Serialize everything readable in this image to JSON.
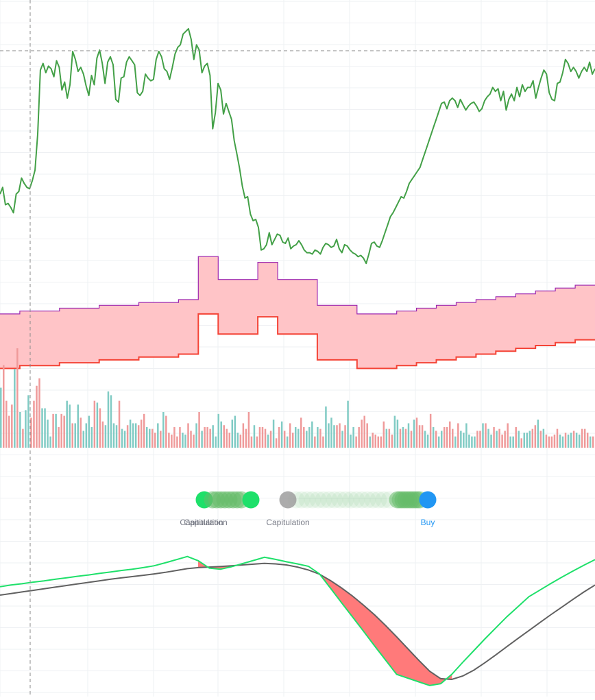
{
  "colors": {
    "price": "#43a047",
    "channel_fill": "#ffc4c7",
    "channel_top": "#9c27b0",
    "channel_bottom": "#f44336",
    "vol_up": "#80cbc4",
    "vol_down": "#ef9a9a",
    "osc_fast": "#1ee06a",
    "osc_slow": "#616161",
    "osc_fill": "#ff7a7a",
    "dot_green": "#1ee06a",
    "dot_mid_green": "#66bb6a",
    "dot_gray": "#9e9e9e",
    "dot_buy": "#2196f3",
    "label_gray": "#787b86",
    "label_buy": "#2196f3",
    "grid": "#eef0f3",
    "crosshair": "#8a8a8a"
  },
  "signals": {
    "labels": [
      {
        "text": "Capitulation",
        "color_key": "label_gray"
      },
      {
        "text": "Capitulation",
        "color_key": "label_gray"
      },
      {
        "text": "Capitulation",
        "color_key": "label_gray"
      },
      {
        "text": "Buy",
        "color_key": "label_buy"
      }
    ]
  },
  "chart_data": [
    {
      "type": "line",
      "panel": "price",
      "series": [
        {
          "values": [
            300,
            305,
            292,
            293,
            290,
            286,
            300,
            302,
            312,
            308,
            305,
            304,
            310,
            318,
            345,
            393,
            398,
            391,
            396,
            394,
            388,
            400,
            395,
            378,
            384,
            372,
            382,
            407,
            401,
            392,
            395,
            390,
            381,
            374,
            389,
            382,
            402,
            408,
            398,
            383,
            399,
            403,
            397,
            371,
            369,
            387,
            388,
            399,
            403,
            400,
            397,
            376,
            374,
            377,
            390,
            387,
            385,
            386,
            401,
            407,
            403,
            394,
            392,
            386,
            395,
            405,
            410,
            412,
            420,
            422,
            424,
            416,
            401,
            412,
            408,
            391,
            396,
            398,
            389,
            349,
            361,
            383,
            378,
            360,
            368,
            362,
            356,
            340,
            330,
            319,
            306,
            297,
            298,
            285,
            280,
            281,
            275,
            258,
            259,
            262,
            271,
            262,
            266,
            270,
            269,
            264,
            263,
            267,
            259,
            261,
            262,
            265,
            262,
            258,
            256,
            256,
            255,
            258,
            257,
            255,
            260,
            263,
            262,
            260,
            261,
            266,
            259,
            256,
            262,
            261,
            258,
            256,
            255,
            253,
            254,
            252,
            248,
            255,
            263,
            264,
            261,
            260,
            265,
            271,
            277,
            283,
            286,
            290,
            294,
            298,
            297,
            302,
            308,
            311,
            314,
            317,
            320,
            326,
            332,
            338,
            344,
            350,
            356,
            362,
            368,
            369,
            364,
            370,
            372,
            370,
            365,
            371,
            367,
            363,
            366,
            368,
            369,
            366,
            362,
            364,
            370,
            373,
            375,
            380,
            377,
            379,
            370,
            377,
            363,
            371,
            375,
            370,
            380,
            373,
            382,
            377,
            380,
            380,
            385,
            372,
            380,
            387,
            393,
            390,
            376,
            371,
            370,
            383,
            384,
            391,
            401,
            398,
            392,
            395,
            392,
            387,
            392,
            395,
            392,
            399,
            390,
            394
          ]
        }
      ]
    },
    {
      "type": "area",
      "panel": "channel",
      "series": [
        {
          "values": [
            300,
            301,
            301,
            302,
            302,
            303,
            303,
            304,
            304,
            305,
            320,
            312,
            312,
            318,
            312,
            312,
            303,
            303,
            300,
            300,
            301,
            302,
            303,
            304,
            305,
            306,
            307,
            308,
            309,
            310
          ]
        },
        {
          "values": [
            281,
            282,
            282,
            283,
            283,
            284,
            284,
            285,
            285,
            286,
            300,
            293,
            293,
            299,
            293,
            293,
            284,
            284,
            281,
            281,
            282,
            283,
            284,
            285,
            286,
            287,
            288,
            289,
            290,
            291
          ]
        }
      ]
    },
    {
      "type": "bar",
      "panel": "volume",
      "values": [
        3.2,
        4.4,
        2.5,
        1.7,
        2.3,
        4.2,
        5.3,
        1.9,
        1.0,
        2.0,
        2.8,
        1.6,
        2.5,
        3.3,
        3.7,
        2.1,
        2.1,
        1.5,
        0.6,
        1.8,
        1.8,
        1.1,
        1.8,
        1.7,
        2.5,
        2.3,
        1.3,
        1.3,
        2.3,
        1.6,
        0.9,
        1.3,
        1.7,
        1.1,
        2.5,
        2.4,
        2.1,
        1.4,
        1.2,
        3.0,
        2.8,
        1.3,
        1.2,
        2.5,
        1.0,
        0.9,
        1.2,
        1.5,
        1.3,
        1.3,
        1.2,
        1.5,
        1.8,
        1.1,
        1.0,
        1.0,
        0.8,
        1.3,
        0.9,
        1.9,
        1.7,
        0.8,
        0.7,
        1.1,
        0.6,
        1.1,
        0.8,
        0.7,
        1.3,
        0.9,
        0.7,
        1.3,
        1.9,
        0.9,
        1.1,
        1.1,
        1.0,
        1.2,
        0.6,
        1.8,
        1.4,
        1.2,
        1.0,
        0.8,
        1.5,
        1.7,
        0.8,
        0.7,
        1.3,
        1.0,
        1.9,
        0.6,
        1.2,
        0.6,
        1.1,
        1.1,
        1.0,
        0.7,
        0.9,
        1.5,
        0.5,
        1.1,
        1.4,
        0.9,
        0.6,
        1.3,
        0.8,
        1.1,
        1.0,
        1.6,
        1.1,
        0.9,
        1.1,
        1.4,
        0.6,
        1.1,
        1.0,
        0.6,
        2.2,
        1.3,
        1.6,
        1.2,
        1.2,
        1.3,
        0.9,
        1.2,
        2.5,
        0.7,
        1.1,
        0.6,
        1.1,
        1.5,
        1.7,
        1.3,
        0.6,
        0.8,
        0.7,
        0.6,
        0.6,
        1.4,
        1.0,
        1.0,
        0.7,
        1.7,
        1.5,
        1.0,
        1.1,
        1.0,
        1.3,
        0.9,
        1.5,
        1.6,
        1.2,
        1.2,
        0.9,
        0.7,
        1.8,
        1.1,
        0.9,
        0.6,
        0.9,
        1.1,
        1.1,
        1.4,
        1.0,
        0.6,
        1.3,
        0.9,
        0.8,
        1.3,
        0.7,
        0.6,
        0.6,
        0.9,
        0.9,
        1.3,
        1.3,
        1.0,
        0.7,
        1.1,
        0.9,
        1.0,
        0.7,
        0.9,
        1.3,
        0.6,
        0.6,
        1.1,
        0.9,
        0.5,
        0.8,
        0.8,
        0.9,
        1.0,
        1.2,
        1.5,
        0.9,
        1.0,
        0.7,
        0.6,
        0.6,
        0.7,
        1.0,
        0.7,
        0.6,
        0.8,
        0.7,
        0.8,
        0.9,
        0.8,
        0.7,
        1.0,
        1.0,
        0.8,
        0.6,
        0.6
      ],
      "direction": [
        1,
        0,
        0,
        0,
        0,
        1,
        0,
        1,
        0,
        1,
        1,
        0,
        0,
        0,
        0,
        1,
        1,
        1,
        1,
        0,
        1,
        0,
        0,
        0,
        1,
        1,
        0,
        1,
        1,
        0,
        1,
        1,
        1,
        1,
        0,
        1,
        0,
        0,
        1,
        1,
        1,
        1,
        1,
        0,
        1,
        1,
        0,
        1,
        1,
        1,
        0,
        0,
        0,
        1,
        1,
        0,
        0,
        1,
        0,
        1,
        0,
        0,
        0,
        0,
        0,
        0,
        1,
        1,
        0,
        0,
        0,
        1,
        0,
        1,
        0,
        0,
        0,
        1,
        1,
        1,
        1,
        0,
        0,
        0,
        1,
        1,
        1,
        0,
        0,
        0,
        0,
        0,
        1,
        0,
        0,
        0,
        0,
        1,
        0,
        1,
        0,
        0,
        1,
        0,
        1,
        0,
        0,
        1,
        1,
        0,
        0,
        1,
        1,
        1,
        0,
        1,
        0,
        0,
        1,
        1,
        1,
        1,
        0,
        0,
        1,
        0,
        1,
        1,
        1,
        0,
        0,
        0,
        0,
        0,
        1,
        0,
        0,
        0,
        0,
        0,
        1,
        0,
        0,
        1,
        1,
        0,
        1,
        0,
        1,
        0,
        1,
        0,
        0,
        0,
        1,
        1,
        0,
        1,
        0,
        1,
        1,
        0,
        0,
        0,
        0,
        1,
        0,
        1,
        1,
        1,
        1,
        1,
        1,
        0,
        0,
        1,
        0,
        1,
        1,
        0,
        1,
        0,
        0,
        0,
        0,
        1,
        1,
        0,
        1,
        0,
        1,
        1,
        1,
        0,
        0,
        1,
        0,
        1,
        0,
        0,
        0,
        0,
        0,
        1,
        1,
        0,
        1,
        1,
        0,
        1,
        1,
        0,
        0,
        0,
        1,
        0
      ]
    },
    {
      "type": "line",
      "panel": "oscillator",
      "series": [
        {
          "values": [
            45.2,
            45.8,
            46.3,
            46.9,
            47.4,
            48.0,
            48.5,
            49.1,
            49.6,
            50.2,
            50.7,
            51.3,
            51.8,
            52.4,
            53.1,
            54.2,
            55.4,
            56.6,
            55.0,
            52.2,
            51.8,
            52.7,
            53.9,
            55.1,
            56.3,
            55.5,
            54.6,
            53.8,
            52.9,
            50.0,
            44.6,
            39.1,
            33.7,
            28.3,
            22.8,
            17.4,
            12.0,
            10.6,
            9.2,
            7.8,
            8.5,
            12.0,
            16.6,
            21.0,
            25.4,
            29.6,
            33.8,
            37.6,
            41.4,
            43.9,
            46.4,
            48.8,
            51.1,
            53.3,
            55.4
          ]
        },
        {
          "values": [
            42.0,
            42.6,
            43.2,
            43.8,
            44.4,
            45.0,
            45.6,
            46.2,
            46.8,
            47.4,
            48.0,
            48.5,
            49.0,
            49.5,
            50.0,
            50.6,
            51.3,
            52.0,
            52.4,
            52.6,
            52.8,
            53.1,
            53.4,
            53.7,
            54.0,
            53.8,
            53.4,
            52.6,
            51.5,
            49.9,
            47.5,
            44.7,
            41.6,
            38.2,
            34.5,
            30.5,
            26.2,
            21.8,
            17.4,
            13.2,
            10.4,
            10.1,
            11.4,
            13.6,
            16.4,
            19.4,
            22.5,
            25.6,
            28.6,
            31.6,
            34.6,
            37.5,
            40.4,
            43.2,
            45.8
          ]
        }
      ],
      "ylim": [
        0,
        70
      ]
    }
  ]
}
